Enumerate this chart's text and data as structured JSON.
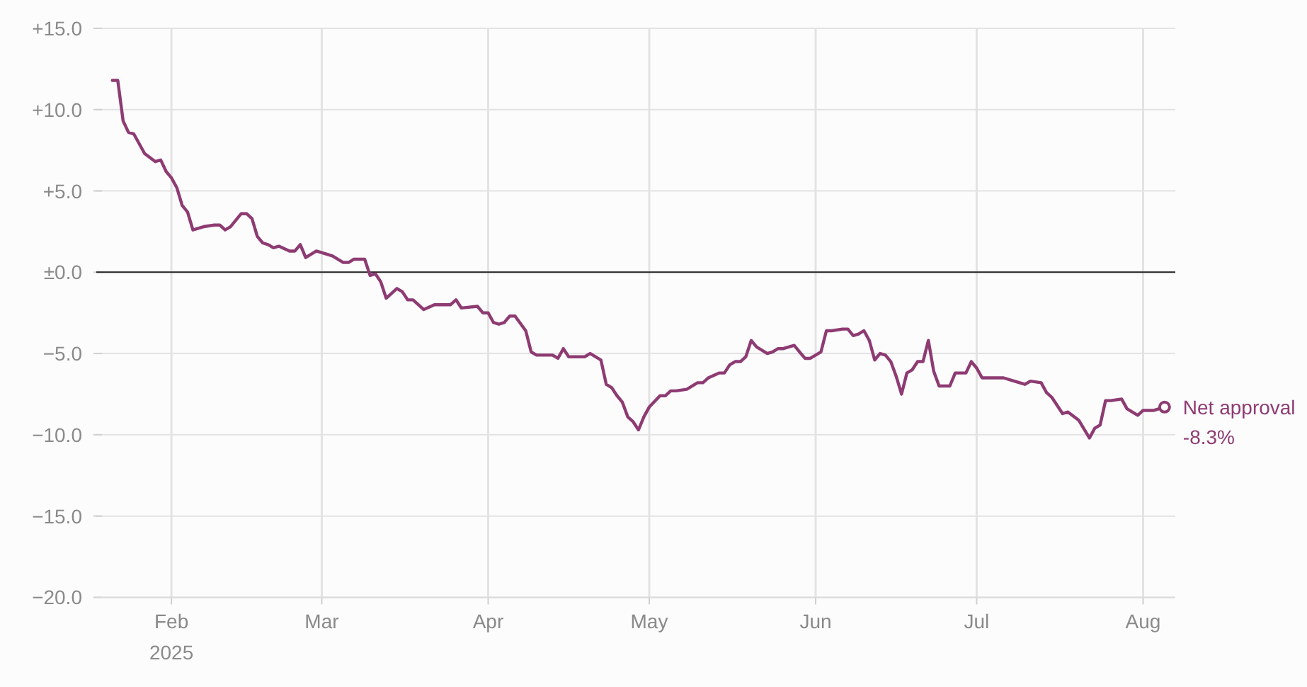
{
  "chart_data": {
    "type": "line",
    "x": [
      "2025-01-21",
      "2025-01-22",
      "2025-01-23",
      "2025-01-24",
      "2025-01-25",
      "2025-01-27",
      "2025-01-29",
      "2025-01-30",
      "2025-01-31",
      "2025-02-01",
      "2025-02-02",
      "2025-02-03",
      "2025-02-04",
      "2025-02-05",
      "2025-02-07",
      "2025-02-09",
      "2025-02-10",
      "2025-02-11",
      "2025-02-12",
      "2025-02-14",
      "2025-02-15",
      "2025-02-16",
      "2025-02-17",
      "2025-02-18",
      "2025-02-19",
      "2025-02-20",
      "2025-02-21",
      "2025-02-23",
      "2025-02-24",
      "2025-02-25",
      "2025-02-26",
      "2025-02-28",
      "2025-03-03",
      "2025-03-05",
      "2025-03-06",
      "2025-03-07",
      "2025-03-09",
      "2025-03-10",
      "2025-03-11",
      "2025-03-12",
      "2025-03-13",
      "2025-03-15",
      "2025-03-16",
      "2025-03-17",
      "2025-03-18",
      "2025-03-20",
      "2025-03-22",
      "2025-03-25",
      "2025-03-26",
      "2025-03-27",
      "2025-03-30",
      "2025-03-31",
      "2025-04-01",
      "2025-04-02",
      "2025-04-03",
      "2025-04-04",
      "2025-04-05",
      "2025-04-06",
      "2025-04-08",
      "2025-04-09",
      "2025-04-10",
      "2025-04-11",
      "2025-04-13",
      "2025-04-14",
      "2025-04-15",
      "2025-04-16",
      "2025-04-19",
      "2025-04-20",
      "2025-04-22",
      "2025-04-23",
      "2025-04-24",
      "2025-04-25",
      "2025-04-26",
      "2025-04-27",
      "2025-04-28",
      "2025-04-29",
      "2025-04-30",
      "2025-05-01",
      "2025-05-03",
      "2025-05-04",
      "2025-05-05",
      "2025-05-06",
      "2025-05-08",
      "2025-05-10",
      "2025-05-11",
      "2025-05-12",
      "2025-05-14",
      "2025-05-15",
      "2025-05-16",
      "2025-05-17",
      "2025-05-18",
      "2025-05-19",
      "2025-05-20",
      "2025-05-21",
      "2025-05-23",
      "2025-05-24",
      "2025-05-25",
      "2025-05-26",
      "2025-05-28",
      "2025-05-30",
      "2025-05-31",
      "2025-06-02",
      "2025-06-03",
      "2025-06-04",
      "2025-06-06",
      "2025-06-07",
      "2025-06-08",
      "2025-06-09",
      "2025-06-10",
      "2025-06-11",
      "2025-06-12",
      "2025-06-13",
      "2025-06-14",
      "2025-06-15",
      "2025-06-16",
      "2025-06-17",
      "2025-06-18",
      "2025-06-19",
      "2025-06-20",
      "2025-06-21",
      "2025-06-22",
      "2025-06-23",
      "2025-06-24",
      "2025-06-26",
      "2025-06-27",
      "2025-06-29",
      "2025-06-30",
      "2025-07-01",
      "2025-07-02",
      "2025-07-06",
      "2025-07-08",
      "2025-07-10",
      "2025-07-11",
      "2025-07-13",
      "2025-07-14",
      "2025-07-15",
      "2025-07-17",
      "2025-07-18",
      "2025-07-20",
      "2025-07-22",
      "2025-07-23",
      "2025-07-24",
      "2025-07-25",
      "2025-07-26",
      "2025-07-28",
      "2025-07-29",
      "2025-07-31",
      "2025-08-01",
      "2025-08-03",
      "2025-08-05"
    ],
    "series": [
      {
        "name": "Net approval",
        "color": "#8e3b73",
        "values": [
          11.8,
          11.8,
          9.3,
          8.6,
          8.5,
          7.3,
          6.8,
          6.9,
          6.2,
          5.8,
          5.2,
          4.1,
          3.7,
          2.6,
          2.8,
          2.9,
          2.9,
          2.6,
          2.8,
          3.6,
          3.6,
          3.3,
          2.2,
          1.8,
          1.7,
          1.5,
          1.6,
          1.3,
          1.3,
          1.7,
          0.9,
          1.3,
          1.0,
          0.6,
          0.6,
          0.8,
          0.8,
          -0.2,
          -0.1,
          -0.6,
          -1.6,
          -1.0,
          -1.2,
          -1.7,
          -1.7,
          -2.3,
          -2.0,
          -2.0,
          -1.7,
          -2.2,
          -2.1,
          -2.5,
          -2.5,
          -3.1,
          -3.2,
          -3.1,
          -2.7,
          -2.7,
          -3.6,
          -4.9,
          -5.1,
          -5.1,
          -5.1,
          -5.3,
          -4.7,
          -5.2,
          -5.2,
          -5.0,
          -5.4,
          -6.9,
          -7.1,
          -7.6,
          -8.0,
          -8.9,
          -9.2,
          -9.7,
          -8.9,
          -8.3,
          -7.6,
          -7.6,
          -7.3,
          -7.3,
          -7.2,
          -6.8,
          -6.8,
          -6.5,
          -6.2,
          -6.2,
          -5.7,
          -5.5,
          -5.5,
          -5.2,
          -4.2,
          -4.6,
          -5.0,
          -4.9,
          -4.7,
          -4.7,
          -4.5,
          -5.3,
          -5.3,
          -4.9,
          -3.6,
          -3.6,
          -3.5,
          -3.5,
          -3.9,
          -3.8,
          -3.6,
          -4.2,
          -5.4,
          -5.0,
          -5.1,
          -5.5,
          -6.4,
          -7.5,
          -6.2,
          -6.0,
          -5.5,
          -5.5,
          -4.2,
          -6.1,
          -7.0,
          -7.0,
          -6.2,
          -6.2,
          -5.5,
          -5.9,
          -6.5,
          -6.5,
          -6.7,
          -6.9,
          -6.7,
          -6.8,
          -7.4,
          -7.7,
          -8.7,
          -8.6,
          -9.1,
          -10.2,
          -9.6,
          -9.4,
          -7.9,
          -7.9,
          -7.8,
          -8.4,
          -8.8,
          -8.5,
          -8.5,
          -8.3
        ],
        "value_labels": [
          null,
          null,
          null,
          null,
          null,
          null,
          null,
          null,
          null,
          null,
          null,
          null,
          null,
          null,
          null,
          null,
          null,
          null,
          null,
          null,
          null,
          null,
          null,
          null,
          null,
          null,
          null,
          null,
          null,
          null,
          null,
          null,
          null,
          null,
          null,
          null,
          null,
          null,
          null,
          null,
          null,
          null,
          null,
          null,
          null,
          null,
          null,
          null,
          null,
          null,
          null,
          null,
          null,
          null,
          null,
          null,
          null,
          null,
          null,
          null,
          null,
          null,
          null,
          null,
          null,
          null,
          null,
          null,
          null,
          null,
          null,
          null,
          null,
          null,
          null,
          null,
          null,
          null,
          null,
          null,
          null,
          null,
          null,
          null,
          null,
          null,
          null,
          null,
          null,
          null,
          null,
          null,
          null,
          null,
          null,
          null,
          null,
          null,
          null,
          null,
          null,
          null,
          null,
          null,
          null,
          null,
          null,
          null,
          null,
          null,
          null,
          null,
          null,
          null,
          null,
          null,
          null,
          null,
          null,
          null,
          null,
          null,
          null,
          null,
          null,
          null,
          null,
          null,
          null,
          null,
          null,
          null,
          null,
          null,
          null,
          null,
          null,
          null,
          null,
          null,
          null,
          null,
          null,
          null,
          null,
          null,
          null,
          null,
          null,
          "-8.3%"
        ]
      }
    ],
    "xlim": [
      "2025-01-18",
      "2025-08-07"
    ],
    "xticks": [
      {
        "value": "2025-02-01",
        "label": "Feb\n2025"
      },
      {
        "value": "2025-03-01",
        "label": "Mar"
      },
      {
        "value": "2025-04-01",
        "label": "Apr"
      },
      {
        "value": "2025-05-01",
        "label": "May"
      },
      {
        "value": "2025-06-01",
        "label": "Jun"
      },
      {
        "value": "2025-07-01",
        "label": "Jul"
      },
      {
        "value": "2025-08-01",
        "label": "Aug"
      }
    ],
    "ylim": [
      -20,
      15
    ],
    "yticks": [
      {
        "value": 15,
        "label": "+15.0"
      },
      {
        "value": 10,
        "label": "+10.0"
      },
      {
        "value": 5,
        "label": "+5.0"
      },
      {
        "value": 0,
        "label": "±0.0"
      },
      {
        "value": -5,
        "label": "−5.0"
      },
      {
        "value": -10,
        "label": "−10.0"
      },
      {
        "value": -15,
        "label": "−15.0"
      },
      {
        "value": -20,
        "label": "−20.0"
      }
    ],
    "grid": true,
    "ref_lines": [
      {
        "axis": "y",
        "value": 0,
        "color": "#222222"
      }
    ],
    "line_style": "solid"
  }
}
